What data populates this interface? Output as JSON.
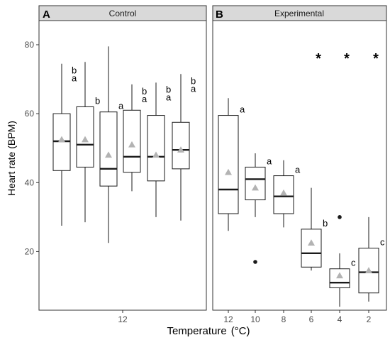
{
  "chart_data": {
    "type": "box",
    "ylabel": "Heart rate (BPM)",
    "xlabel_main": "Temperature",
    "xlabel_unit": "(°C)",
    "ylim": [
      3,
      87
    ],
    "yticks": [
      20,
      40,
      60,
      80
    ],
    "grid": false,
    "colors": {
      "strip": "#d9d9d9",
      "mean": "#b3b3b3",
      "box": "#000000"
    },
    "panels": [
      {
        "letter": "A",
        "title": "Control",
        "xtick_label": "12",
        "boxes": [
          {
            "min": 27.5,
            "q1": 43.5,
            "median": 52,
            "q3": 60,
            "max": 74.5,
            "mean": 52.5,
            "letters": [
              "b",
              "a"
            ],
            "outliers": []
          },
          {
            "min": 28.5,
            "q1": 44.5,
            "median": 51,
            "q3": 62,
            "max": 75,
            "mean": 52.5,
            "letters": [
              "b"
            ],
            "outliers": []
          },
          {
            "min": 22.5,
            "q1": 39,
            "median": 44,
            "q3": 60.5,
            "max": 79.5,
            "mean": 48,
            "letters": [
              "a"
            ],
            "outliers": []
          },
          {
            "min": 37.5,
            "q1": 43,
            "median": 47.5,
            "q3": 61,
            "max": 68.5,
            "mean": 51,
            "letters": [
              "b",
              "a"
            ],
            "outliers": []
          },
          {
            "min": 30,
            "q1": 40.5,
            "median": 47.5,
            "q3": 59.5,
            "max": 69,
            "mean": 48,
            "letters": [
              "b",
              "a"
            ],
            "outliers": []
          },
          {
            "min": 29,
            "q1": 44,
            "median": 49.5,
            "q3": 57.5,
            "max": 71.5,
            "mean": 49.5,
            "letters": [
              "b",
              "a"
            ],
            "outliers": []
          }
        ]
      },
      {
        "letter": "B",
        "title": "Experimental",
        "boxes": [
          {
            "x": "12",
            "min": 26,
            "q1": 31,
            "median": 38,
            "q3": 59.5,
            "max": 64.5,
            "mean": 43,
            "letters": [
              "a"
            ],
            "star": false,
            "outliers": []
          },
          {
            "x": "10",
            "min": 30,
            "q1": 35,
            "median": 41,
            "q3": 44.5,
            "max": 48.5,
            "mean": 38.5,
            "letters": [
              "a"
            ],
            "star": false,
            "outliers": [
              17
            ]
          },
          {
            "x": "8",
            "min": 27,
            "q1": 31,
            "median": 36,
            "q3": 42,
            "max": 46.5,
            "mean": 37,
            "letters": [
              "a"
            ],
            "star": false,
            "outliers": []
          },
          {
            "x": "6",
            "min": 14.5,
            "q1": 15.5,
            "median": 19.5,
            "q3": 26.5,
            "max": 38.5,
            "mean": 22.5,
            "letters": [
              "b"
            ],
            "star": true,
            "outliers": []
          },
          {
            "x": "4",
            "min": 4,
            "q1": 9.5,
            "median": 11,
            "q3": 15,
            "max": 19.5,
            "mean": 13,
            "letters": [
              "c"
            ],
            "star": true,
            "outliers": [
              30
            ]
          },
          {
            "x": "2",
            "min": 5.5,
            "q1": 8,
            "median": 14,
            "q3": 21,
            "max": 30,
            "mean": 14.5,
            "letters": [
              "c"
            ],
            "star": true,
            "outliers": []
          }
        ],
        "star_symbol": "*"
      }
    ]
  }
}
